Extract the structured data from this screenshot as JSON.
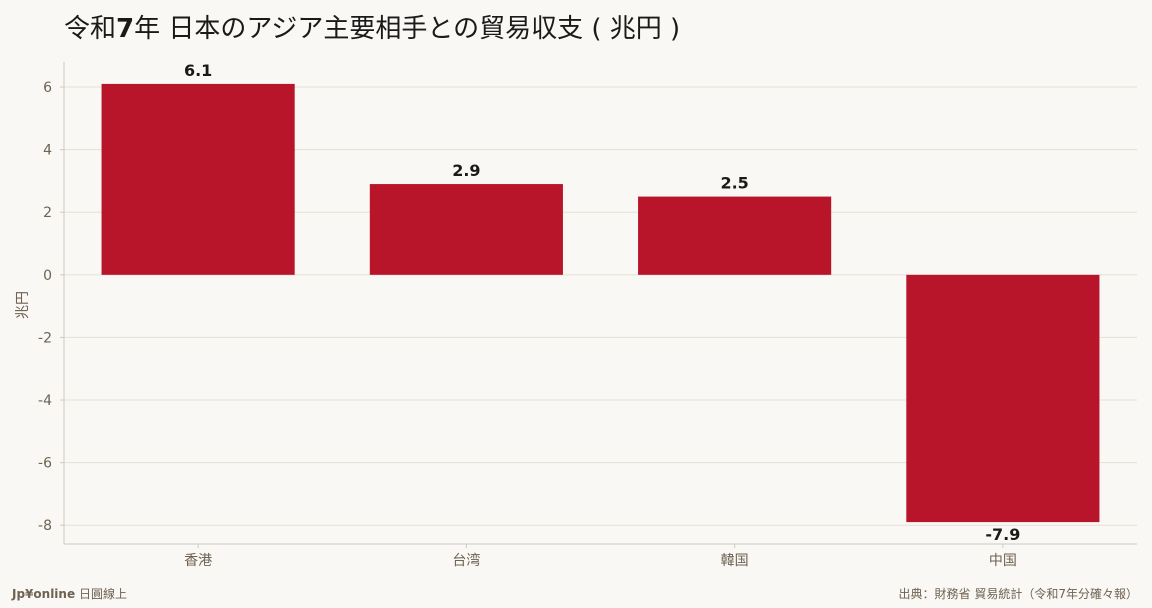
{
  "title": {
    "prefix": "令和",
    "year": "7",
    "suffix": "年 日本のアジア主要相手との貿易収支 ( 兆円 )"
  },
  "footer": {
    "brand": "Jp¥online",
    "brand_sub": "日圓線上",
    "source": "出典：財務省 貿易統計（令和7年分確々報）"
  },
  "chart_data": {
    "type": "bar",
    "title": "令和7年 日本のアジア主要相手との貿易収支 ( 兆円 )",
    "categories": [
      "香港",
      "台湾",
      "韓国",
      "中国"
    ],
    "values": [
      6.1,
      2.9,
      2.5,
      -7.9
    ],
    "data_labels": [
      "6.1",
      "2.9",
      "2.5",
      "-7.9"
    ],
    "xlabel": "",
    "ylabel": "兆円",
    "ylim": [
      -8.6,
      6.8
    ],
    "yticks": [
      6,
      4,
      2,
      0,
      -2,
      -4,
      -6,
      -8
    ],
    "grid": true,
    "bar_color": "#b8152b",
    "grid_color": "#e4e0d8",
    "axis_color": "#cfcac0",
    "tick_label_color": "#6e6252",
    "data_label_color": "#1a1a1a"
  }
}
